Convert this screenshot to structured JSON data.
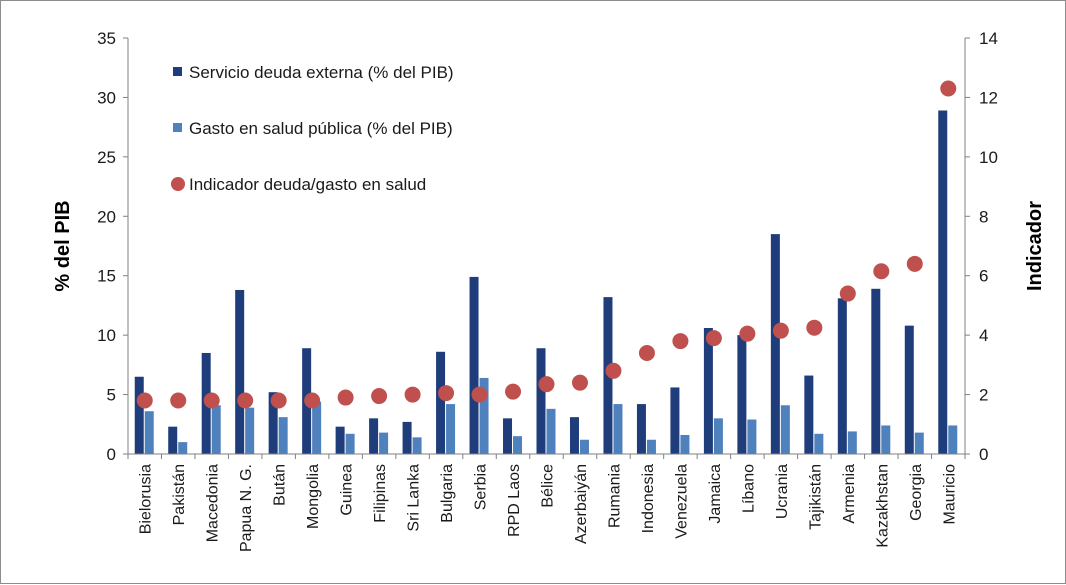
{
  "chart_data": {
    "type": "bar",
    "categories": [
      "Bielorusia",
      "Pakistán",
      "Macedonia",
      "Papua N. G.",
      "Bután",
      "Mongolia",
      "Guinea",
      "Filipinas",
      "Sri Lanka",
      "Bulgaria",
      "Serbia",
      "RPD Laos",
      "Bélice",
      "Azerbaiyán",
      "Rumania",
      "Indonesia",
      "Venezuela",
      "Jamaica",
      "Líbano",
      "Ucrania",
      "Tajikistán",
      "Armenia",
      "Kazakhstan",
      "Georgia",
      "Mauricio"
    ],
    "series": [
      {
        "name": "Servicio deuda externa (% del PIB)",
        "axis": "left",
        "kind": "bar",
        "color": "#1f3d7a",
        "values": [
          6.5,
          2.3,
          8.5,
          13.8,
          5.2,
          8.9,
          2.3,
          3.0,
          2.7,
          8.6,
          14.9,
          3.0,
          8.9,
          3.1,
          13.2,
          4.2,
          5.6,
          10.6,
          10.0,
          18.5,
          6.6,
          13.1,
          13.9,
          10.8,
          28.9
        ]
      },
      {
        "name": "Gasto en salud pública (% del PIB)",
        "axis": "left",
        "kind": "bar",
        "color": "#4f81bd",
        "values": [
          3.6,
          1.0,
          4.1,
          3.9,
          3.1,
          4.4,
          1.7,
          1.8,
          1.4,
          4.2,
          6.4,
          1.5,
          3.8,
          1.2,
          4.2,
          1.2,
          1.6,
          3.0,
          2.9,
          4.1,
          1.7,
          1.9,
          2.4,
          1.8,
          2.4
        ]
      },
      {
        "name": "Indicador deuda/gasto en salud",
        "axis": "right",
        "kind": "scatter",
        "color": "#c0504d",
        "values": [
          1.8,
          1.8,
          1.8,
          1.8,
          1.8,
          1.8,
          1.9,
          1.95,
          2.0,
          2.05,
          2.0,
          2.1,
          2.35,
          2.4,
          2.8,
          3.4,
          3.8,
          3.9,
          4.05,
          4.15,
          4.25,
          5.4,
          6.15,
          6.4,
          12.3
        ]
      }
    ],
    "ylabel": "% del PIB",
    "y2label": "Indicador",
    "ylim": [
      0,
      35
    ],
    "y2lim": [
      0,
      14
    ],
    "yticks": [
      "0",
      "5",
      "10",
      "15",
      "20",
      "25",
      "30",
      "35"
    ],
    "y2ticks": [
      "0",
      "2",
      "4",
      "6",
      "8",
      "10",
      "12",
      "14"
    ],
    "grid": false,
    "legend_position": "top-left"
  }
}
